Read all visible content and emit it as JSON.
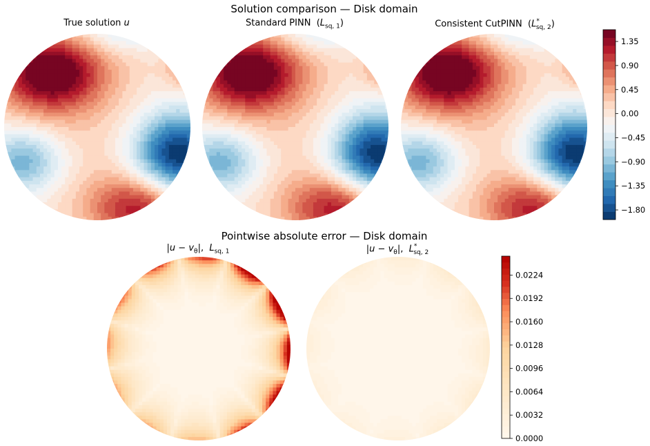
{
  "figure": {
    "top_title": "Solution comparison — Disk domain",
    "bottom_title": "Pointwise absolute error — Disk domain"
  },
  "panels_top": [
    {
      "title_html": "True solution <i>u</i>"
    },
    {
      "title_html": "Standard PINN&nbsp; (<i>L</i><sub>sq, 1</sub>)"
    },
    {
      "title_html": "Consistent CutPINN&nbsp; (<i>L</i><sup>*</sup><sub style=\"margin-left:-5px\">sq, 2</sub>)"
    }
  ],
  "panels_bottom": [
    {
      "title_html": "|<i>u</i> − <i>v</i><sub>θ</sub>|,&nbsp; <i>L</i><sub>sq, 1</sub>"
    },
    {
      "title_html": "|<i>u</i> − <i>v</i><sub>θ</sub>|,&nbsp; <i>L</i><sup>*</sup><sub style=\"margin-left:-5px\">sq, 2</sub>"
    }
  ],
  "chart_data": [
    {
      "type": "heatmap",
      "subtype": "filled-contour-on-disk",
      "name": "solution",
      "panels": [
        "True solution u",
        "Standard PINN (L_sq,1)",
        "Consistent CutPINN (L*_sq,2)"
      ],
      "colormap": "RdBu_r",
      "colorbar_ticks": [
        "1.35",
        "0.90",
        "0.45",
        "0.00",
        "−0.45",
        "−0.90",
        "−1.35",
        "−1.80"
      ],
      "colorbar_tick_values": [
        1.35,
        0.9,
        0.45,
        0.0,
        -0.45,
        -0.9,
        -1.35,
        -1.8
      ],
      "color_range": [
        -1.98,
        1.57
      ],
      "n_levels": 24,
      "extrema": {
        "max": 1.5,
        "min": -1.9
      }
    },
    {
      "type": "heatmap",
      "subtype": "filled-contour-on-disk",
      "name": "pointwise_abs_error",
      "panels": [
        "|u − v_θ|, L_sq,1",
        "|u − v_θ|, L*_sq,2"
      ],
      "colormap": "OrRd",
      "colorbar_ticks": [
        "0.0224",
        "0.0192",
        "0.0160",
        "0.0128",
        "0.0096",
        "0.0064",
        "0.0032",
        "0.0000"
      ],
      "colorbar_tick_values": [
        0.0224,
        0.0192,
        0.016,
        0.0128,
        0.0096,
        0.0064,
        0.0032,
        0.0
      ],
      "color_range": [
        0.0,
        0.025
      ],
      "max_error_panel_1": 0.025,
      "max_error_panel_2": 0.006
    }
  ]
}
